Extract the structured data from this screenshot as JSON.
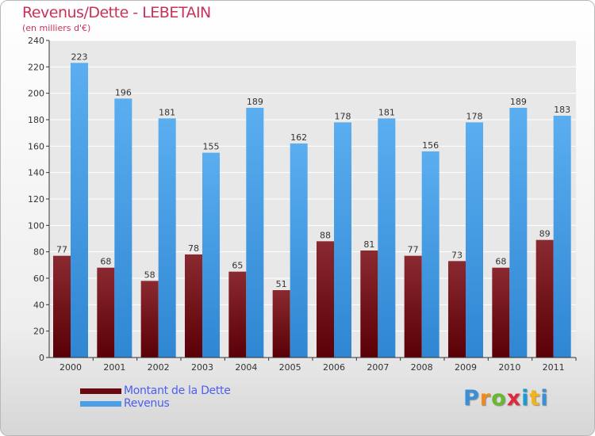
{
  "header": {
    "title": "Revenus/Dette - LEBETAIN",
    "subtitle": "(en milliers d'€)"
  },
  "logo_text": "Proxiti",
  "colors": {
    "title": "#c8325a",
    "debt": "#7a0f16",
    "revenue": "#4a9fe6",
    "legend_text": "#4b5ff0"
  },
  "chart_data": {
    "type": "bar",
    "title": "Revenus/Dette - LEBETAIN",
    "ylabel": "(en milliers d'€)",
    "categories": [
      "2000",
      "2001",
      "2002",
      "2003",
      "2004",
      "2005",
      "2006",
      "2007",
      "2008",
      "2009",
      "2010",
      "2011"
    ],
    "series": [
      {
        "name": "Montant de la Dette",
        "values": [
          77,
          68,
          58,
          78,
          65,
          51,
          88,
          81,
          77,
          73,
          68,
          89
        ]
      },
      {
        "name": "Revenus",
        "values": [
          223,
          196,
          181,
          155,
          189,
          162,
          178,
          181,
          156,
          178,
          189,
          183
        ]
      }
    ],
    "ylim": [
      0,
      240
    ],
    "yticks": [
      0,
      20,
      40,
      60,
      80,
      100,
      120,
      140,
      160,
      180,
      200,
      220,
      240
    ],
    "grid": true,
    "legend_position": "bottom-left"
  }
}
